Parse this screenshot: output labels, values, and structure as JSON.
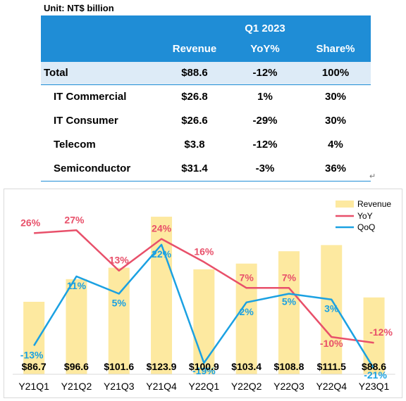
{
  "table": {
    "unit": "Unit: NT$ billion",
    "period": "Q1 2023",
    "headers": [
      "Revenue",
      "YoY%",
      "Share%"
    ],
    "total": {
      "label": "Total",
      "revenue": "$88.6",
      "yoy": "-12%",
      "share": "100%"
    },
    "rows": [
      {
        "label": "IT Commercial",
        "revenue": "$26.8",
        "yoy": "1%",
        "share": "30%"
      },
      {
        "label": "IT Consumer",
        "revenue": "$26.6",
        "yoy": "-29%",
        "share": "30%"
      },
      {
        "label": "Telecom",
        "revenue": "$3.8",
        "yoy": "-12%",
        "share": "4%"
      },
      {
        "label": "Semiconductor",
        "revenue": "$31.4",
        "yoy": "-3%",
        "share": "36%"
      }
    ],
    "para_mark": "↵"
  },
  "chart_data": {
    "type": "bar",
    "categories": [
      "Y21Q1",
      "Y21Q2",
      "Y21Q3",
      "Y21Q4",
      "Y22Q1",
      "Y22Q2",
      "Y22Q3",
      "Y22Q4",
      "Y23Q1"
    ],
    "series": [
      {
        "name": "Revenue",
        "type": "bar",
        "values": [
          86.7,
          96.6,
          101.6,
          123.9,
          100.9,
          103.4,
          108.8,
          111.5,
          88.6
        ],
        "labels": [
          "$86.7",
          "$96.6",
          "$101.6",
          "$123.9",
          "$100.9",
          "$103.4",
          "$108.8",
          "$111.5",
          "$88.6"
        ]
      },
      {
        "name": "YoY",
        "type": "line",
        "values": [
          26,
          27,
          13,
          24,
          16,
          7,
          7,
          -10,
          -12
        ],
        "labels": [
          "26%",
          "27%",
          "13%",
          "24%",
          "16%",
          "7%",
          "7%",
          "-10%",
          "-12%"
        ]
      },
      {
        "name": "QoQ",
        "type": "line",
        "values": [
          -13,
          11,
          5,
          22,
          -19,
          2,
          5,
          3,
          -21
        ],
        "labels": [
          "-13%",
          "11%",
          "5%",
          "22%",
          "-19%",
          "2%",
          "5%",
          "3%",
          "-21%"
        ]
      }
    ],
    "legend": "top-right",
    "grid": false,
    "colors": {
      "Revenue": "#fde9a0",
      "YoY": "#e8506a",
      "QoQ": "#1ba1e2"
    }
  }
}
